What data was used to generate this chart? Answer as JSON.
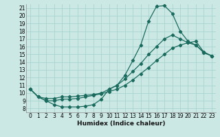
{
  "xlabel": "Humidex (Indice chaleur)",
  "bg_color": "#cce8e4",
  "grid_color": "#a8d4cf",
  "line_color": "#1a6b5e",
  "xlim": [
    -0.5,
    23.5
  ],
  "ylim": [
    7.5,
    21.5
  ],
  "xticks": [
    0,
    1,
    2,
    3,
    4,
    5,
    6,
    7,
    8,
    9,
    10,
    11,
    12,
    13,
    14,
    15,
    16,
    17,
    18,
    19,
    20,
    21,
    22,
    23
  ],
  "yticks": [
    8,
    9,
    10,
    11,
    12,
    13,
    14,
    15,
    16,
    17,
    18,
    19,
    20,
    21
  ],
  "curve1_x": [
    0,
    1,
    2,
    3,
    4,
    5,
    6,
    7,
    8,
    9,
    10,
    11,
    12,
    13,
    14,
    15,
    16,
    17,
    18,
    19,
    20,
    21,
    22,
    23
  ],
  "curve1_y": [
    10.5,
    9.5,
    9.0,
    8.5,
    8.2,
    8.2,
    8.2,
    8.3,
    8.5,
    9.2,
    10.5,
    11.0,
    12.3,
    14.2,
    16.2,
    19.3,
    21.2,
    21.3,
    20.3,
    18.0,
    16.7,
    16.2,
    15.2,
    14.8
  ],
  "curve2_x": [
    0,
    1,
    2,
    3,
    4,
    5,
    6,
    7,
    8,
    9,
    10,
    11,
    12,
    13,
    14,
    15,
    16,
    17,
    18,
    19,
    20,
    21,
    22,
    23
  ],
  "curve2_y": [
    10.5,
    9.5,
    9.3,
    9.3,
    9.5,
    9.5,
    9.6,
    9.7,
    9.8,
    10.0,
    10.5,
    11.0,
    11.8,
    12.8,
    13.8,
    15.0,
    16.0,
    17.0,
    17.5,
    17.0,
    16.5,
    16.2,
    15.3,
    14.8
  ],
  "curve3_x": [
    0,
    1,
    2,
    3,
    4,
    5,
    6,
    7,
    8,
    9,
    10,
    11,
    12,
    13,
    14,
    15,
    16,
    17,
    18,
    19,
    20,
    21,
    22,
    23
  ],
  "curve3_y": [
    10.5,
    9.5,
    9.0,
    9.0,
    9.2,
    9.2,
    9.3,
    9.5,
    9.7,
    9.9,
    10.2,
    10.5,
    11.0,
    11.7,
    12.5,
    13.3,
    14.2,
    15.0,
    15.8,
    16.2,
    16.5,
    16.7,
    15.3,
    14.8
  ]
}
